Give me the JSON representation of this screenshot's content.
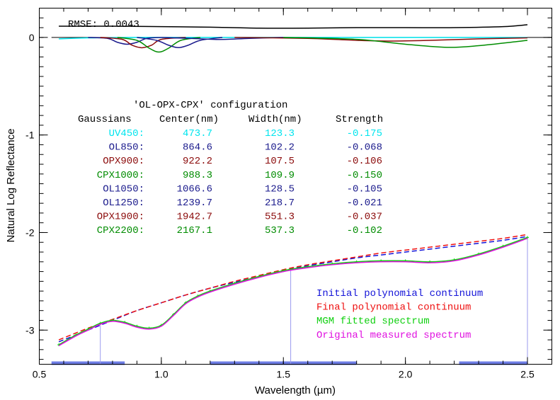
{
  "chart_data": {
    "type": "line",
    "title": "",
    "xlabel": "Wavelength (µm)",
    "ylabel": "Natural Log Reflectance",
    "xlim": [
      0.5,
      2.6
    ],
    "ylim": [
      -3.35,
      0.3
    ],
    "x_ticks": [
      {
        "value": 0.5,
        "label": "0.5"
      },
      {
        "value": 1.0,
        "label": "1.0"
      },
      {
        "value": 1.5,
        "label": "1.5"
      },
      {
        "value": 2.0,
        "label": "2.0"
      },
      {
        "value": 2.5,
        "label": "2.5"
      }
    ],
    "y_ticks": [
      {
        "value": 0,
        "label": "0"
      },
      {
        "value": -1,
        "label": "-1"
      },
      {
        "value": -2,
        "label": "-2"
      },
      {
        "value": -3,
        "label": "-3"
      }
    ],
    "rmse_label": "RMSE: 0.0043",
    "table": {
      "title": "'OL-OPX-CPX' configuration",
      "headers": [
        "Gaussians",
        "Center(nm)",
        "Width(nm)",
        "Strength"
      ],
      "rows": [
        {
          "name": "UV450:",
          "center": "473.7",
          "width": "123.3",
          "strength": "-0.175",
          "color": "#00e5ee"
        },
        {
          "name": "OL850:",
          "center": "864.6",
          "width": "102.2",
          "strength": "-0.068",
          "color": "#1a1a8c"
        },
        {
          "name": "OPX900:",
          "center": "922.2",
          "width": "107.5",
          "strength": "-0.106",
          "color": "#8b0a0a"
        },
        {
          "name": "CPX1000:",
          "center": "988.3",
          "width": "109.9",
          "strength": "-0.150",
          "color": "#008c00"
        },
        {
          "name": "OL1050:",
          "center": "1066.6",
          "width": "128.5",
          "strength": "-0.105",
          "color": "#1a1a8c"
        },
        {
          "name": "OL1250:",
          "center": "1239.7",
          "width": "218.7",
          "strength": "-0.021",
          "color": "#1a1a8c"
        },
        {
          "name": "OPX1900:",
          "center": "1942.7",
          "width": "551.3",
          "strength": "-0.037",
          "color": "#8b0a0a"
        },
        {
          "name": "CPX2200:",
          "center": "2167.1",
          "width": "537.3",
          "strength": "-0.102",
          "color": "#008c00"
        }
      ]
    },
    "legend": [
      {
        "label": "Initial polynomial continuum",
        "color": "#1414d8"
      },
      {
        "label": "Final polynomial continuum",
        "color": "#ee1010"
      },
      {
        "label": "MGM fitted spectrum",
        "color": "#10d010"
      },
      {
        "label": "Original measured spectrum",
        "color": "#e010e0"
      }
    ],
    "series": [
      {
        "name": "Residual (RMSE)",
        "color": "#000000",
        "style": "solid",
        "x": [
          0.58,
          0.8,
          1.0,
          1.2,
          1.4,
          1.6,
          1.8,
          2.0,
          2.2,
          2.4,
          2.5
        ],
        "y": [
          0.115,
          0.115,
          0.11,
          0.105,
          0.095,
          0.095,
          0.1,
          0.1,
          0.1,
          0.11,
          0.13
        ]
      },
      {
        "name": "Initial polynomial continuum",
        "color": "#1414d8",
        "style": "dashed",
        "x": [
          0.58,
          0.7,
          0.8,
          0.9,
          1.0,
          1.1,
          1.2,
          1.3,
          1.4,
          1.5,
          1.6,
          1.7,
          1.8,
          1.9,
          2.0,
          2.1,
          2.2,
          2.3,
          2.4,
          2.5
        ],
        "y": [
          -3.12,
          -3.0,
          -2.9,
          -2.8,
          -2.72,
          -2.64,
          -2.57,
          -2.51,
          -2.45,
          -2.39,
          -2.34,
          -2.3,
          -2.26,
          -2.23,
          -2.2,
          -2.17,
          -2.14,
          -2.11,
          -2.08,
          -2.04
        ]
      },
      {
        "name": "Final polynomial continuum",
        "color": "#ee1010",
        "style": "dashed",
        "x": [
          0.58,
          0.7,
          0.8,
          0.9,
          1.0,
          1.1,
          1.2,
          1.3,
          1.4,
          1.5,
          1.6,
          1.7,
          1.8,
          1.9,
          2.0,
          2.1,
          2.2,
          2.3,
          2.4,
          2.5
        ],
        "y": [
          -3.1,
          -2.98,
          -2.89,
          -2.8,
          -2.72,
          -2.64,
          -2.57,
          -2.5,
          -2.44,
          -2.38,
          -2.33,
          -2.29,
          -2.25,
          -2.21,
          -2.18,
          -2.15,
          -2.12,
          -2.09,
          -2.06,
          -2.02
        ]
      },
      {
        "name": "MGM fitted spectrum",
        "color": "#10d010",
        "style": "solid-marked",
        "x": [
          0.58,
          0.65,
          0.7,
          0.75,
          0.8,
          0.85,
          0.9,
          0.95,
          1.0,
          1.05,
          1.1,
          1.15,
          1.2,
          1.3,
          1.4,
          1.5,
          1.6,
          1.7,
          1.8,
          1.9,
          2.0,
          2.1,
          2.2,
          2.3,
          2.4,
          2.5
        ],
        "y": [
          -3.15,
          -3.05,
          -2.99,
          -2.93,
          -2.9,
          -2.92,
          -2.96,
          -2.98,
          -2.95,
          -2.84,
          -2.72,
          -2.65,
          -2.6,
          -2.52,
          -2.45,
          -2.39,
          -2.35,
          -2.32,
          -2.3,
          -2.29,
          -2.29,
          -2.3,
          -2.28,
          -2.22,
          -2.14,
          -2.05
        ]
      },
      {
        "name": "Original measured spectrum",
        "color": "#e010e0",
        "style": "solid",
        "x": [
          0.58,
          0.65,
          0.7,
          0.75,
          0.8,
          0.85,
          0.9,
          0.95,
          1.0,
          1.05,
          1.1,
          1.15,
          1.2,
          1.3,
          1.4,
          1.5,
          1.6,
          1.7,
          1.8,
          1.9,
          2.0,
          2.1,
          2.2,
          2.3,
          2.4,
          2.5
        ],
        "y": [
          -3.16,
          -3.06,
          -3.0,
          -2.94,
          -2.91,
          -2.93,
          -2.97,
          -2.99,
          -2.96,
          -2.85,
          -2.73,
          -2.66,
          -2.61,
          -2.53,
          -2.46,
          -2.4,
          -2.36,
          -2.33,
          -2.31,
          -2.3,
          -2.3,
          -2.31,
          -2.29,
          -2.23,
          -2.15,
          -2.06
        ]
      },
      {
        "name": "UV450 band",
        "color": "#00e5ee",
        "style": "solid",
        "x": [
          0.58,
          0.7,
          0.8,
          0.9,
          1.0,
          1.2,
          1.5,
          2.0,
          2.5
        ],
        "y": [
          -0.015,
          -0.005,
          -0.002,
          0,
          0,
          0,
          0,
          0,
          0
        ]
      },
      {
        "name": "OL850 band",
        "color": "#1a1a8c",
        "style": "solid",
        "x": [
          0.7,
          0.78,
          0.82,
          0.86,
          0.9,
          0.94,
          1.0
        ],
        "y": [
          0,
          -0.01,
          -0.05,
          -0.07,
          -0.05,
          -0.01,
          0
        ]
      },
      {
        "name": "OPX900 band",
        "color": "#8b0a0a",
        "style": "solid",
        "x": [
          0.75,
          0.84,
          0.88,
          0.92,
          0.96,
          1.0,
          1.1
        ],
        "y": [
          0,
          -0.02,
          -0.08,
          -0.106,
          -0.08,
          -0.02,
          0
        ]
      },
      {
        "name": "CPX1000 band",
        "color": "#008c00",
        "style": "solid",
        "x": [
          0.82,
          0.9,
          0.95,
          0.99,
          1.03,
          1.08,
          1.16
        ],
        "y": [
          0,
          -0.03,
          -0.11,
          -0.15,
          -0.11,
          -0.03,
          0
        ]
      },
      {
        "name": "OL1050 band",
        "color": "#1a1a8c",
        "style": "solid",
        "x": [
          0.9,
          0.98,
          1.03,
          1.07,
          1.11,
          1.16,
          1.25
        ],
        "y": [
          0,
          -0.03,
          -0.08,
          -0.105,
          -0.08,
          -0.03,
          0
        ]
      },
      {
        "name": "OL1250 band",
        "color": "#1a1a8c",
        "style": "solid",
        "x": [
          1.0,
          1.12,
          1.24,
          1.36,
          1.5
        ],
        "y": [
          0,
          -0.01,
          -0.021,
          -0.01,
          0
        ]
      },
      {
        "name": "OPX1900 band",
        "color": "#8b0a0a",
        "style": "solid",
        "x": [
          1.3,
          1.6,
          1.8,
          1.94,
          2.1,
          2.3,
          2.5
        ],
        "y": [
          0,
          -0.01,
          -0.03,
          -0.037,
          -0.03,
          -0.015,
          -0.005
        ]
      },
      {
        "name": "CPX2200 band",
        "color": "#008c00",
        "style": "solid",
        "x": [
          1.5,
          1.8,
          2.0,
          2.17,
          2.3,
          2.45,
          2.5
        ],
        "y": [
          0,
          -0.02,
          -0.07,
          -0.102,
          -0.085,
          -0.045,
          -0.03
        ]
      }
    ],
    "anchor_points": {
      "color": "#9a9aee",
      "x": [
        0.75,
        1.53,
        2.5
      ],
      "y": [
        -2.93,
        -2.38,
        -2.04
      ]
    },
    "fit_ranges": {
      "color": "#4a5ce0",
      "ranges": [
        [
          0.55,
          0.85
        ],
        [
          1.2,
          1.8
        ],
        [
          2.22,
          2.5
        ]
      ]
    },
    "zero_line": 0
  }
}
